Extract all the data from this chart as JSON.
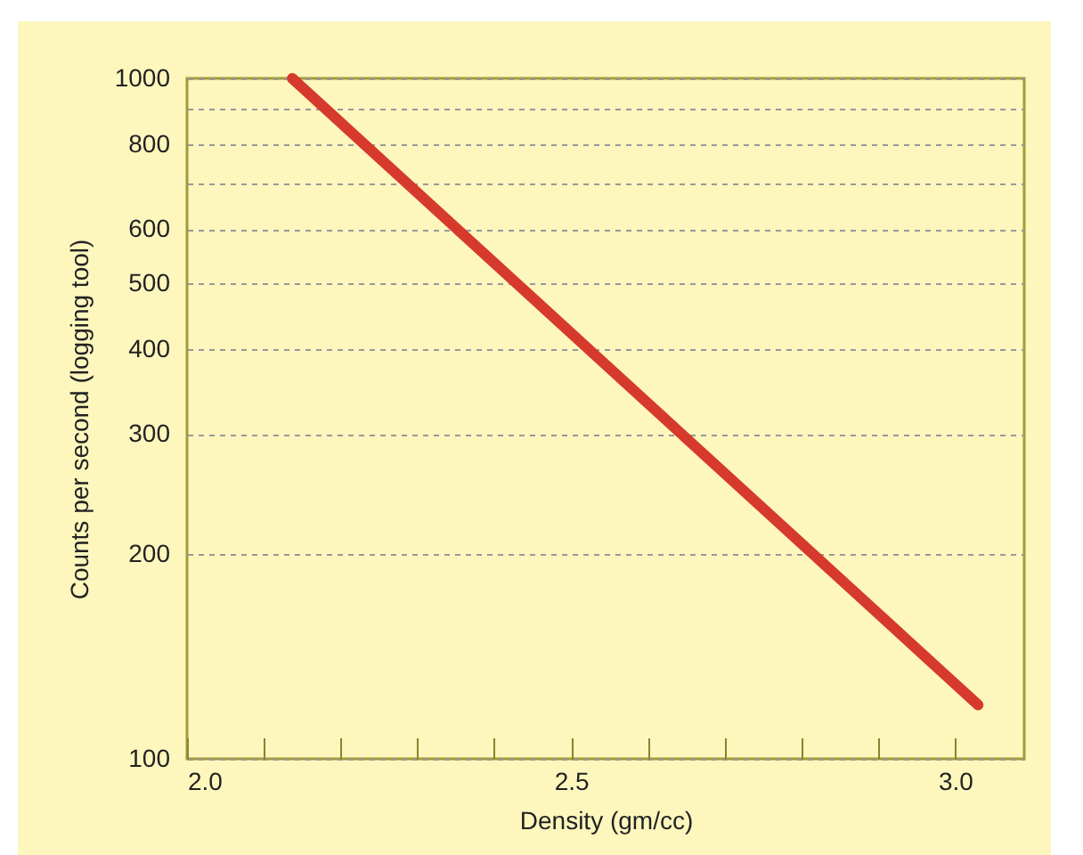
{
  "chart_data": {
    "type": "line",
    "xlabel": "Density (gm/cc)",
    "ylabel": "Counts per second (logging tool)",
    "x": [
      2.137,
      3.03
    ],
    "series": [
      {
        "color": "#d63a2c",
        "values": [
          1000,
          120
        ]
      }
    ],
    "xlim": [
      2.0,
      3.09
    ],
    "xticks": [
      {
        "value": 2.0,
        "label": "2.0"
      },
      {
        "value": 2.1,
        "label": null
      },
      {
        "value": 2.2,
        "label": null
      },
      {
        "value": 2.3,
        "label": null
      },
      {
        "value": 2.4,
        "label": null
      },
      {
        "value": 2.5,
        "label": "2.5"
      },
      {
        "value": 2.6,
        "label": null
      },
      {
        "value": 2.7,
        "label": null
      },
      {
        "value": 2.8,
        "label": null
      },
      {
        "value": 2.9,
        "label": null
      },
      {
        "value": 3.0,
        "label": "3.0"
      }
    ],
    "ylim": [
      100,
      1000
    ],
    "yticks": [
      100,
      200,
      300,
      400,
      500,
      600,
      {
        "value": 700,
        "label": null
      },
      800,
      {
        "value": 900,
        "label": null
      },
      1000
    ],
    "log": "y",
    "grid": "y",
    "marker": "none",
    "line_style": "solid"
  }
}
